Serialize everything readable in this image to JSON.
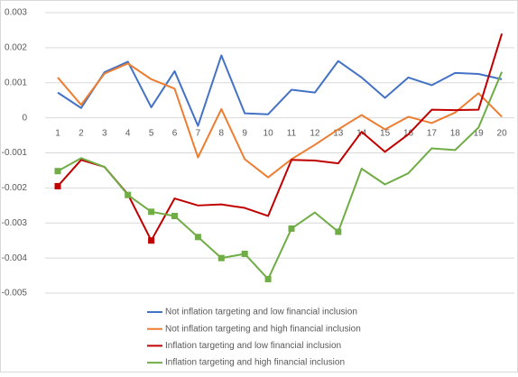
{
  "chart_data": {
    "type": "line",
    "categories": [
      "1",
      "2",
      "3",
      "4",
      "5",
      "6",
      "7",
      "8",
      "9",
      "10",
      "11",
      "12",
      "13",
      "14",
      "15",
      "16",
      "17",
      "18",
      "19",
      "20"
    ],
    "series": [
      {
        "name": "Not inflation targeting and  low financial inclusion",
        "color": "#4472c4",
        "values": [
          0.00072,
          0.00028,
          0.0013,
          0.0016,
          0.0003,
          0.00133,
          -0.00023,
          0.00178,
          0.00013,
          0.0001,
          0.0008,
          0.00072,
          0.00162,
          0.00115,
          0.00057,
          0.00115,
          0.00093,
          0.00128,
          0.00125,
          0.0011
        ]
      },
      {
        "name": "Not inflation targeting and  high financial inclusion",
        "color": "#ed7d31",
        "values": [
          0.00115,
          0.00037,
          0.00126,
          0.00155,
          0.0011,
          0.00083,
          -0.00113,
          0.00025,
          -0.00118,
          -0.0017,
          -0.00118,
          -0.00077,
          -0.00033,
          8e-05,
          -0.00033,
          3e-05,
          -0.00015,
          0.00015,
          0.0007,
          3e-05
        ]
      },
      {
        "name": "Inflation targeting and  low financial inclusion",
        "color": "#c00000",
        "values": [
          -0.00195,
          -0.0012,
          -0.0014,
          -0.00218,
          -0.0035,
          -0.0023,
          -0.0025,
          -0.00247,
          -0.00257,
          -0.0028,
          -0.0012,
          -0.00122,
          -0.0013,
          -0.0004,
          -0.00097,
          -0.00047,
          0.00023,
          0.00022,
          0.00023,
          0.0024
        ],
        "markers": [
          0,
          4
        ]
      },
      {
        "name": "Inflation targeting and  high financial inclusion",
        "color": "#70ad47",
        "values": [
          -0.00152,
          -0.00115,
          -0.0014,
          -0.0022,
          -0.00268,
          -0.0028,
          -0.0034,
          -0.004,
          -0.00388,
          -0.0046,
          -0.00316,
          -0.0027,
          -0.00325,
          -0.00145,
          -0.0019,
          -0.00158,
          -0.00087,
          -0.00092,
          -0.00028,
          0.00131
        ],
        "markers": [
          0,
          3,
          4,
          5,
          6,
          7,
          8,
          9,
          10,
          12
        ]
      }
    ],
    "ylim": [
      -0.005,
      0.003
    ],
    "yticks": [
      -0.005,
      -0.004,
      -0.003,
      -0.002,
      -0.001,
      0,
      0.001,
      0.002,
      0.003
    ],
    "grid": true,
    "legend": "bottom"
  }
}
